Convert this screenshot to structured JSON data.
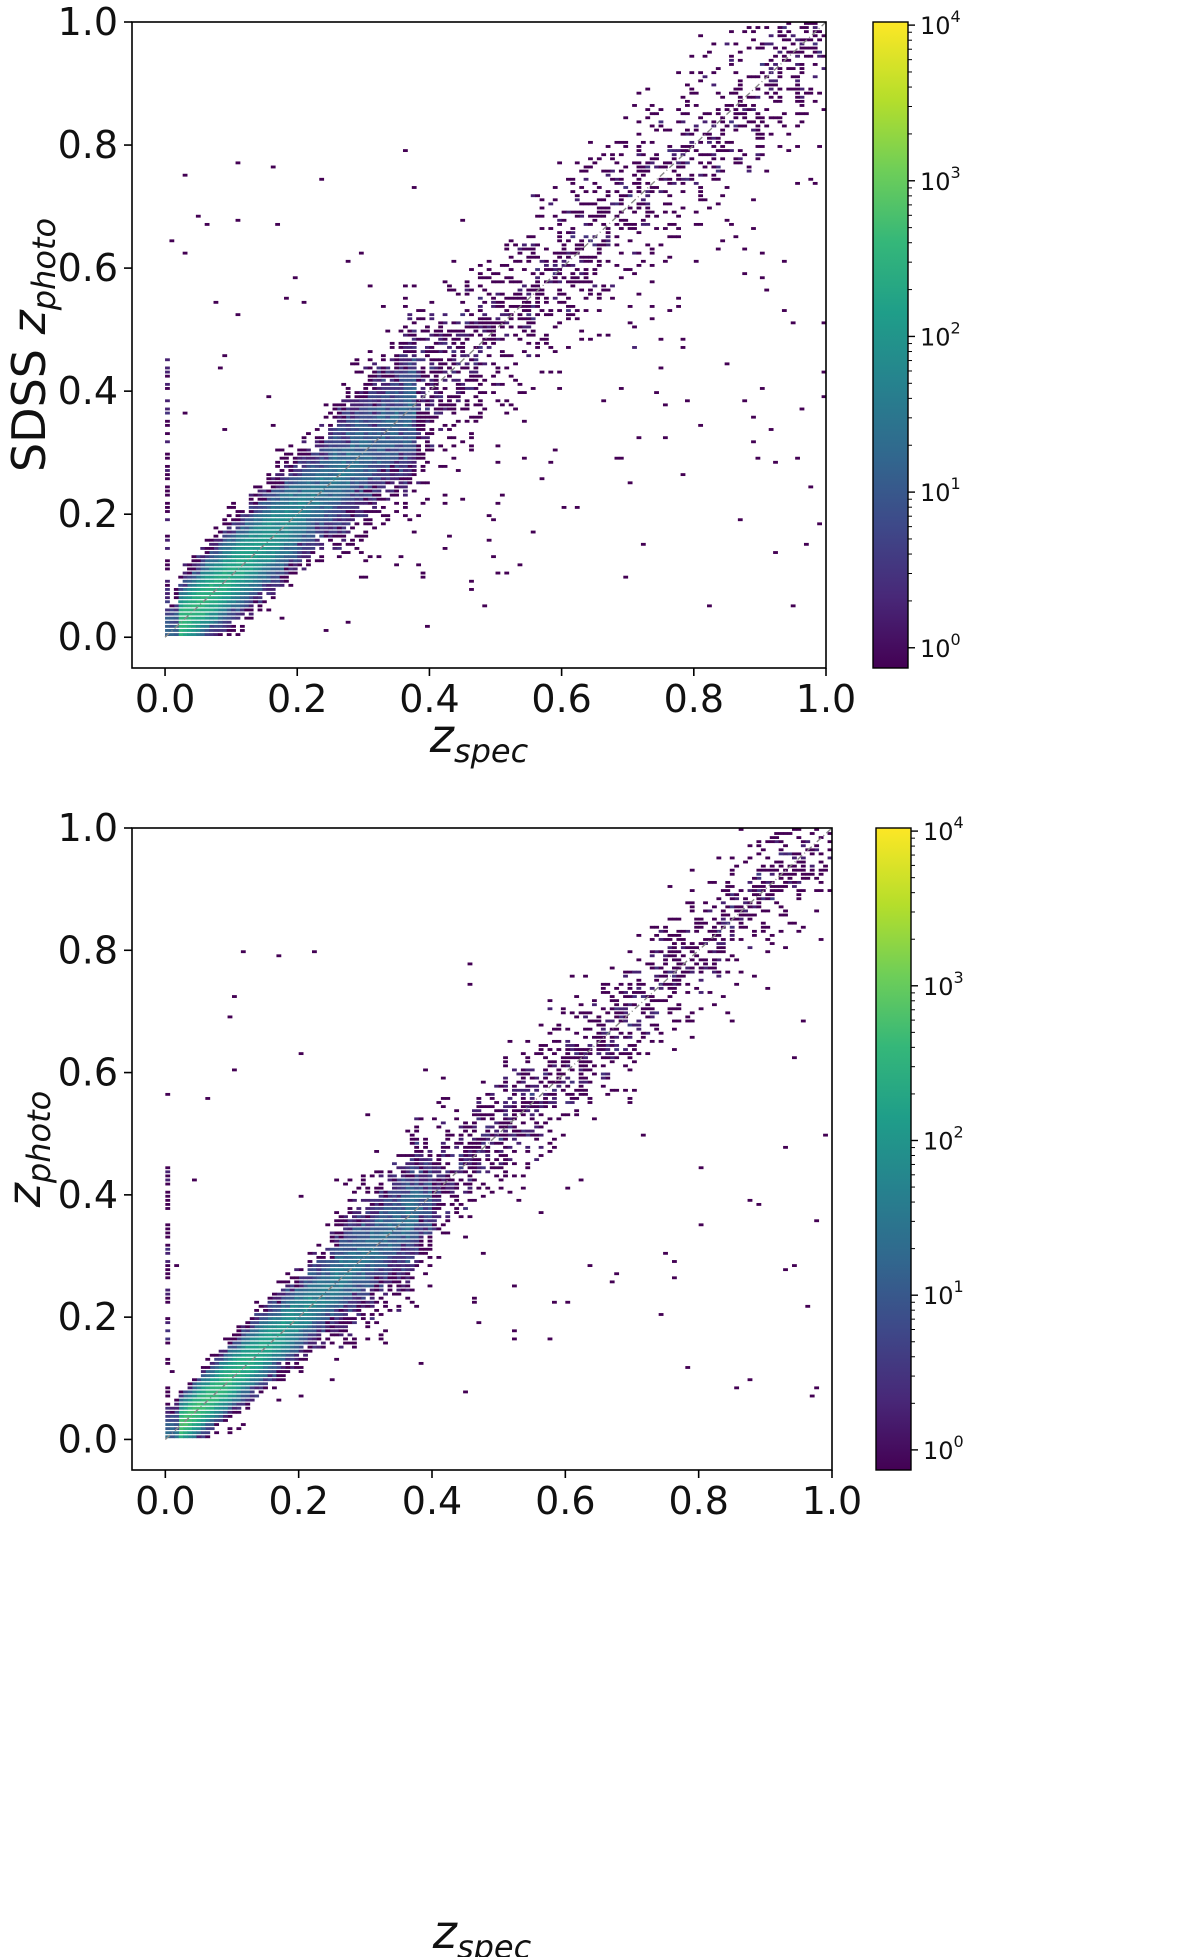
{
  "chart_data": [
    {
      "type": "heatmap",
      "name": "top-panel",
      "title": "",
      "xlabel": {
        "main": "z",
        "sub": "spec"
      },
      "ylabel": {
        "prefix": "SDSS ",
        "main": "z",
        "sub": "photo"
      },
      "xlim": [
        -0.05,
        1.0
      ],
      "ylim": [
        -0.05,
        1.0
      ],
      "xticks": [
        0.0,
        0.2,
        0.4,
        0.6,
        0.8,
        1.0
      ],
      "yticks": [
        0.0,
        0.2,
        0.4,
        0.6,
        0.8,
        1.0
      ],
      "xtick_labels": [
        "0.0",
        "0.2",
        "0.4",
        "0.6",
        "0.8",
        "1.0"
      ],
      "ytick_labels": [
        "0.0",
        "0.2",
        "0.4",
        "0.6",
        "0.8",
        "1.0"
      ],
      "reference_line": "y = x",
      "colormap": "viridis",
      "colorbar": {
        "scale": "log",
        "range": [
          1,
          10000
        ],
        "ticks": [
          {
            "base": "10",
            "exp": "0"
          },
          {
            "base": "10",
            "exp": "1"
          },
          {
            "base": "10",
            "exp": "2"
          },
          {
            "base": "10",
            "exp": "3"
          },
          {
            "base": "10",
            "exp": "4"
          }
        ]
      },
      "distribution": {
        "slope": 1.0,
        "scatter": 0.035,
        "core_max_z": 0.38,
        "tail_max_z": 1.0,
        "peak_counts": 300
      }
    },
    {
      "type": "heatmap",
      "name": "bottom-panel",
      "title": "",
      "xlabel": {
        "main": "z",
        "sub": "spec"
      },
      "ylabel": {
        "prefix": "",
        "main": "z",
        "sub": "photo"
      },
      "xlim": [
        -0.05,
        1.0
      ],
      "ylim": [
        -0.05,
        1.0
      ],
      "xticks": [
        0.0,
        0.2,
        0.4,
        0.6,
        0.8,
        1.0
      ],
      "yticks": [
        0.0,
        0.2,
        0.4,
        0.6,
        0.8,
        1.0
      ],
      "xtick_labels": [
        "0.0",
        "0.2",
        "0.4",
        "0.6",
        "0.8",
        "1.0"
      ],
      "ytick_labels": [
        "0.0",
        "0.2",
        "0.4",
        "0.6",
        "0.8",
        "1.0"
      ],
      "reference_line": "y = x",
      "colormap": "viridis",
      "colorbar": {
        "scale": "log",
        "range": [
          1,
          10000
        ],
        "ticks": [
          {
            "base": "10",
            "exp": "0"
          },
          {
            "base": "10",
            "exp": "1"
          },
          {
            "base": "10",
            "exp": "2"
          },
          {
            "base": "10",
            "exp": "3"
          },
          {
            "base": "10",
            "exp": "4"
          }
        ]
      },
      "distribution": {
        "slope": 1.0,
        "scatter": 0.025,
        "core_max_z": 0.4,
        "tail_max_z": 1.0,
        "peak_counts": 600
      }
    }
  ],
  "colors": {
    "viridis": [
      "#440154",
      "#482878",
      "#3e4989",
      "#31688e",
      "#26828e",
      "#1f9e89",
      "#35b779",
      "#6ece58",
      "#b5de2b",
      "#fde725"
    ],
    "reference_line": "#888888",
    "axes": "#000000"
  }
}
